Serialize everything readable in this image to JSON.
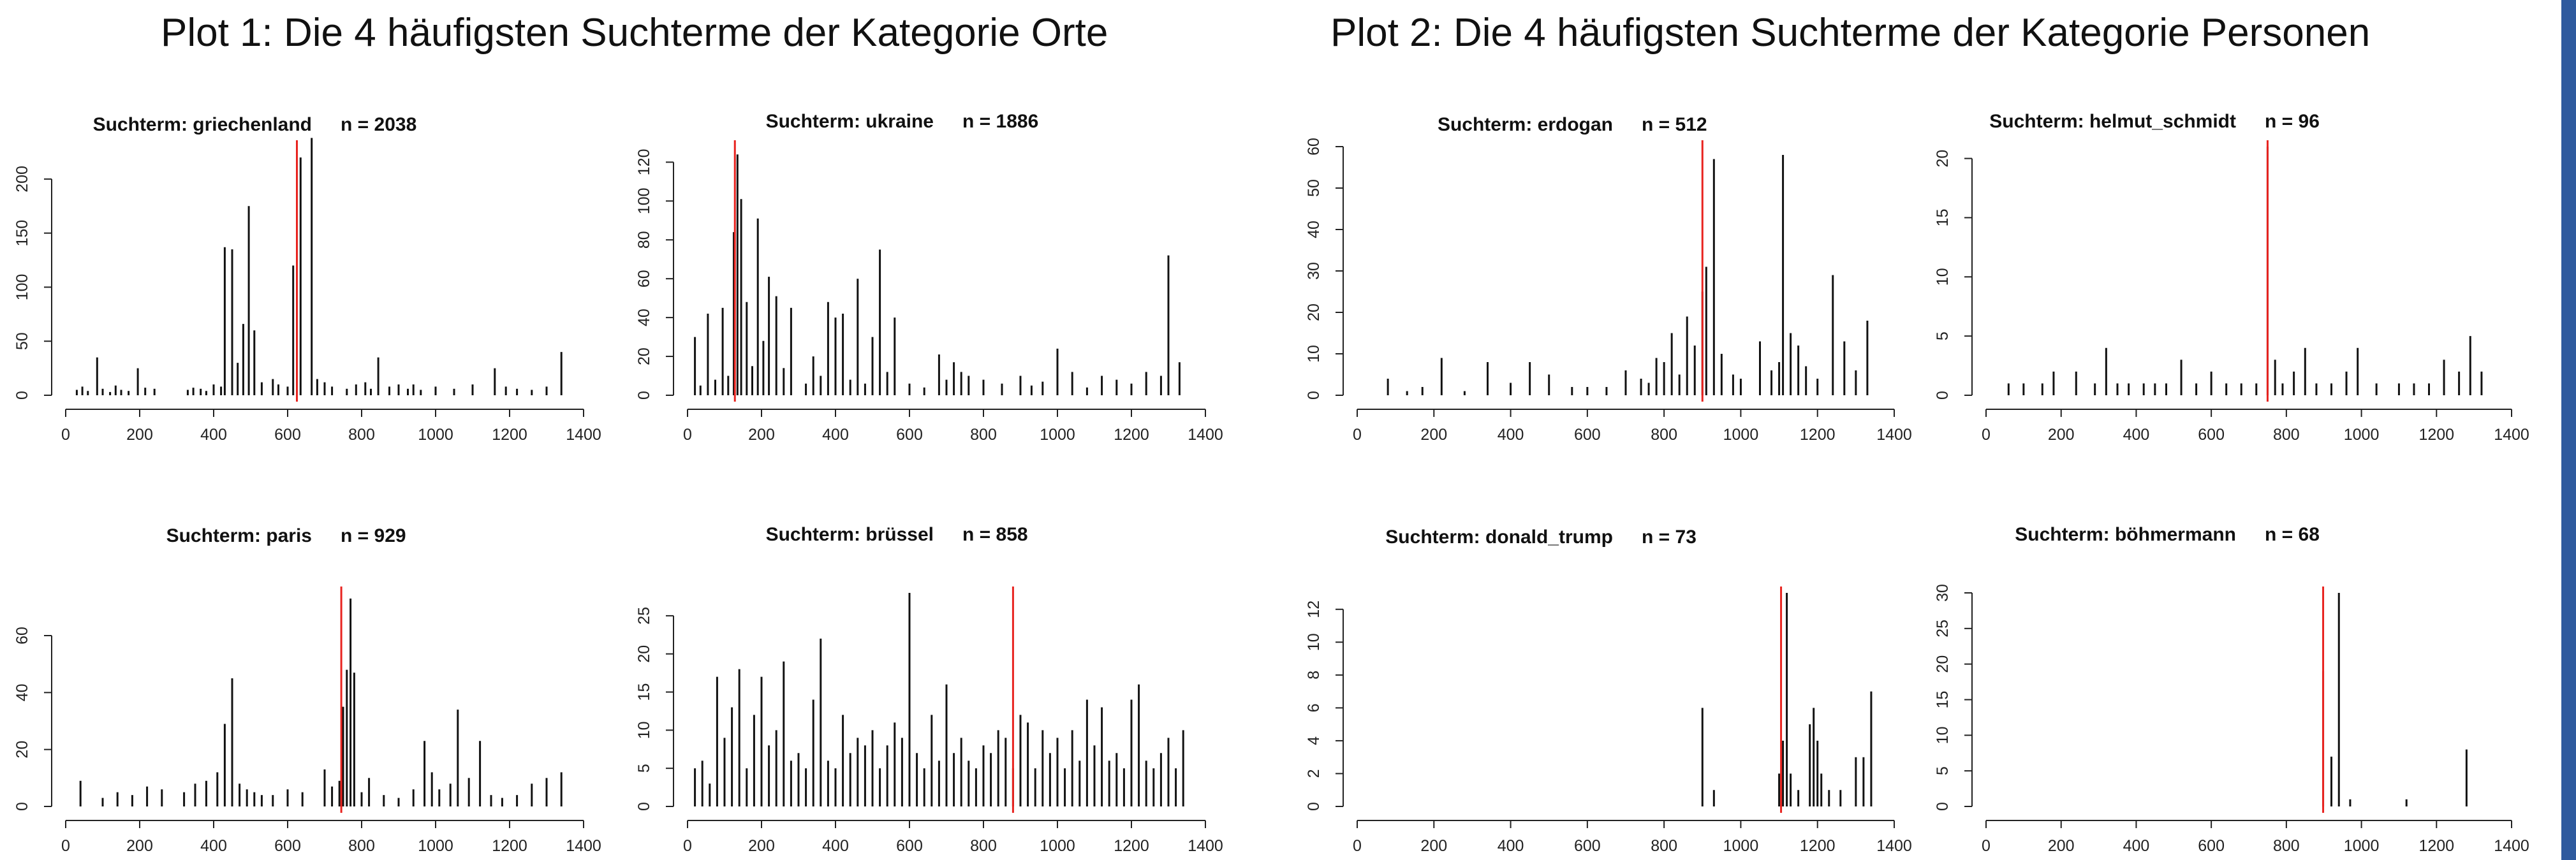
{
  "group_titles": {
    "left": "Plot 1: Die 4 häufigsten Suchterme der Kategorie Orte",
    "right": "Plot 2: Die 4 häufigsten Suchterme der Kategorie Personen"
  },
  "colors": {
    "bars": "#111111",
    "marker": "#e8231f",
    "sidebar": "#2f5a9e"
  },
  "chart_data": [
    {
      "type": "bar",
      "id": "griechenland",
      "title": "Suchterm: griechenland",
      "n_label": "n = 2038",
      "xlim": [
        0,
        1400
      ],
      "ylim": [
        0,
        230
      ],
      "xticks": [
        0,
        200,
        400,
        600,
        800,
        1000,
        1200,
        1400
      ],
      "yticks": [
        0,
        50,
        100,
        150,
        200
      ],
      "marker_x": 625,
      "x": [
        30,
        45,
        60,
        85,
        100,
        120,
        135,
        150,
        170,
        195,
        215,
        240,
        330,
        345,
        365,
        380,
        400,
        420,
        430,
        450,
        465,
        480,
        495,
        510,
        530,
        560,
        575,
        600,
        615,
        625,
        635,
        665,
        680,
        700,
        720,
        760,
        785,
        810,
        825,
        845,
        875,
        900,
        925,
        940,
        960,
        1000,
        1050,
        1100,
        1160,
        1190,
        1220,
        1260,
        1300,
        1340
      ],
      "values": [
        5,
        8,
        4,
        35,
        6,
        3,
        9,
        5,
        4,
        25,
        7,
        6,
        5,
        7,
        6,
        4,
        10,
        8,
        137,
        135,
        30,
        66,
        175,
        60,
        12,
        15,
        10,
        8,
        120,
        160,
        220,
        238,
        15,
        12,
        8,
        6,
        10,
        12,
        6,
        35,
        8,
        10,
        6,
        10,
        5,
        8,
        6,
        10,
        25,
        8,
        6,
        5,
        8,
        40
      ]
    },
    {
      "type": "bar",
      "id": "ukraine",
      "title": "Suchterm: ukraine",
      "n_label": "n = 1886",
      "xlim": [
        0,
        1400
      ],
      "ylim": [
        0,
        128
      ],
      "xticks": [
        0,
        200,
        400,
        600,
        800,
        1000,
        1200,
        1400
      ],
      "yticks": [
        0,
        20,
        40,
        60,
        80,
        100,
        120
      ],
      "marker_x": 128,
      "x": [
        20,
        35,
        55,
        75,
        95,
        110,
        125,
        135,
        145,
        160,
        175,
        190,
        205,
        220,
        240,
        260,
        280,
        320,
        340,
        360,
        380,
        400,
        420,
        440,
        460,
        480,
        500,
        520,
        540,
        560,
        600,
        640,
        680,
        700,
        720,
        740,
        760,
        800,
        850,
        900,
        930,
        960,
        1000,
        1040,
        1080,
        1120,
        1160,
        1200,
        1240,
        1280,
        1300,
        1330
      ],
      "values": [
        30,
        5,
        42,
        8,
        45,
        10,
        84,
        124,
        101,
        48,
        15,
        91,
        28,
        61,
        51,
        14,
        45,
        6,
        20,
        10,
        48,
        40,
        42,
        8,
        60,
        6,
        30,
        75,
        12,
        40,
        6,
        4,
        21,
        8,
        17,
        12,
        10,
        8,
        6,
        10,
        5,
        7,
        24,
        12,
        4,
        10,
        8,
        6,
        12,
        10,
        72,
        17
      ]
    },
    {
      "type": "bar",
      "id": "erdogan",
      "title": "Suchterm: erdogan",
      "n_label": "n = 512",
      "xlim": [
        0,
        1400
      ],
      "ylim": [
        0,
        60
      ],
      "xticks": [
        0,
        200,
        400,
        600,
        800,
        1000,
        1200,
        1400
      ],
      "yticks": [
        0,
        10,
        20,
        30,
        40,
        50,
        60
      ],
      "marker_x": 900,
      "x": [
        80,
        130,
        170,
        220,
        280,
        340,
        400,
        450,
        500,
        560,
        600,
        650,
        700,
        740,
        760,
        780,
        800,
        820,
        840,
        860,
        880,
        900,
        910,
        930,
        950,
        980,
        1000,
        1050,
        1080,
        1100,
        1110,
        1130,
        1150,
        1170,
        1200,
        1240,
        1270,
        1300,
        1330
      ],
      "values": [
        4,
        1,
        2,
        9,
        1,
        8,
        3,
        8,
        5,
        2,
        2,
        2,
        6,
        4,
        3,
        9,
        8,
        15,
        5,
        19,
        12,
        25,
        31,
        57,
        10,
        5,
        4,
        13,
        6,
        8,
        58,
        15,
        12,
        7,
        4,
        29,
        13,
        6,
        18
      ]
    },
    {
      "type": "bar",
      "id": "helmut_schmidt",
      "title": "Suchterm: helmut_schmidt",
      "n_label": "n = 96",
      "xlim": [
        0,
        1400
      ],
      "ylim": [
        0,
        21
      ],
      "xticks": [
        0,
        200,
        400,
        600,
        800,
        1000,
        1200,
        1400
      ],
      "yticks": [
        0,
        5,
        10,
        15,
        20
      ],
      "marker_x": 750,
      "x": [
        60,
        100,
        150,
        180,
        240,
        290,
        320,
        350,
        380,
        420,
        450,
        480,
        520,
        560,
        600,
        640,
        680,
        720,
        750,
        770,
        790,
        820,
        850,
        880,
        920,
        960,
        990,
        1040,
        1100,
        1140,
        1180,
        1220,
        1260,
        1290,
        1320
      ],
      "values": [
        1,
        1,
        1,
        2,
        2,
        1,
        4,
        1,
        1,
        1,
        1,
        1,
        3,
        1,
        2,
        1,
        1,
        1,
        21,
        3,
        1,
        2,
        4,
        1,
        1,
        2,
        4,
        1,
        1,
        1,
        1,
        3,
        2,
        5,
        2
      ]
    },
    {
      "type": "bar",
      "id": "paris",
      "title": "Suchterm: paris",
      "n_label": "n = 929",
      "xlim": [
        0,
        1400
      ],
      "ylim": [
        0,
        75
      ],
      "xticks": [
        0,
        200,
        400,
        600,
        800,
        1000,
        1200,
        1400
      ],
      "yticks": [
        0,
        20,
        40,
        60
      ],
      "marker_x": 745,
      "x": [
        40,
        100,
        140,
        180,
        220,
        260,
        320,
        350,
        380,
        410,
        430,
        450,
        470,
        490,
        510,
        530,
        560,
        600,
        640,
        700,
        720,
        740,
        750,
        760,
        770,
        780,
        800,
        820,
        860,
        900,
        940,
        970,
        990,
        1010,
        1040,
        1060,
        1090,
        1120,
        1150,
        1180,
        1220,
        1260,
        1300,
        1340
      ],
      "values": [
        9,
        3,
        5,
        4,
        7,
        6,
        5,
        8,
        9,
        12,
        29,
        45,
        8,
        6,
        5,
        4,
        4,
        6,
        5,
        13,
        7,
        9,
        35,
        48,
        73,
        47,
        5,
        10,
        4,
        3,
        6,
        23,
        12,
        6,
        8,
        34,
        10,
        23,
        4,
        3,
        4,
        8,
        10,
        12
      ]
    },
    {
      "type": "bar",
      "id": "bruessel",
      "title": "Suchterm: brüssel",
      "n_label": "n = 858",
      "xlim": [
        0,
        1400
      ],
      "ylim": [
        0,
        28
      ],
      "xticks": [
        0,
        200,
        400,
        600,
        800,
        1000,
        1200,
        1400
      ],
      "yticks": [
        0,
        5,
        10,
        15,
        20,
        25
      ],
      "marker_x": 880,
      "x": [
        20,
        40,
        60,
        80,
        100,
        120,
        140,
        160,
        180,
        200,
        220,
        240,
        260,
        280,
        300,
        320,
        340,
        360,
        380,
        400,
        420,
        440,
        460,
        480,
        500,
        520,
        540,
        560,
        580,
        600,
        620,
        640,
        660,
        680,
        700,
        720,
        740,
        760,
        780,
        800,
        820,
        840,
        860,
        880,
        900,
        920,
        940,
        960,
        980,
        1000,
        1020,
        1040,
        1060,
        1080,
        1100,
        1120,
        1140,
        1160,
        1180,
        1200,
        1220,
        1240,
        1260,
        1280,
        1300,
        1320,
        1340
      ],
      "values": [
        5,
        6,
        3,
        17,
        9,
        13,
        18,
        5,
        12,
        17,
        8,
        10,
        19,
        6,
        7,
        5,
        14,
        22,
        6,
        5,
        12,
        7,
        9,
        8,
        10,
        5,
        8,
        11,
        9,
        28,
        7,
        5,
        12,
        6,
        16,
        7,
        9,
        6,
        5,
        8,
        7,
        10,
        9,
        5,
        12,
        11,
        5,
        10,
        7,
        9,
        5,
        10,
        6,
        14,
        8,
        13,
        6,
        7,
        5,
        14,
        16,
        6,
        5,
        7,
        9,
        5,
        10
      ]
    },
    {
      "type": "bar",
      "id": "donald_trump",
      "title": "Suchterm: donald_trump",
      "n_label": "n = 73",
      "xlim": [
        0,
        1400
      ],
      "ylim": [
        0,
        13
      ],
      "xticks": [
        0,
        200,
        400,
        600,
        800,
        1000,
        1200,
        1400
      ],
      "yticks": [
        0,
        2,
        4,
        6,
        8,
        10,
        12
      ],
      "marker_x": 1105,
      "x": [
        900,
        930,
        1100,
        1110,
        1120,
        1130,
        1150,
        1180,
        1190,
        1200,
        1210,
        1230,
        1260,
        1300,
        1320,
        1340
      ],
      "values": [
        6,
        1,
        2,
        4,
        13,
        2,
        1,
        5,
        6,
        4,
        2,
        1,
        1,
        3,
        3,
        7
      ]
    },
    {
      "type": "bar",
      "id": "boehmermann",
      "title": "Suchterm: böhmermann",
      "n_label": "n = 68",
      "xlim": [
        0,
        1400
      ],
      "ylim": [
        0,
        30
      ],
      "xticks": [
        0,
        200,
        400,
        600,
        800,
        1000,
        1200,
        1400
      ],
      "yticks": [
        0,
        5,
        10,
        15,
        20,
        25,
        30
      ],
      "marker_x": 898,
      "x": [
        898,
        920,
        940,
        970,
        1120,
        1280
      ],
      "values": [
        19,
        7,
        30,
        1,
        1,
        8
      ]
    }
  ]
}
